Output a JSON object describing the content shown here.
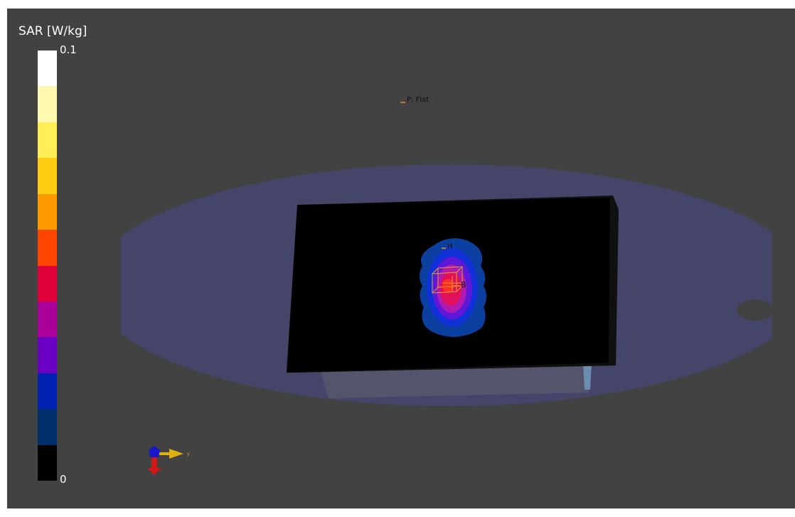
{
  "legend": {
    "title": "SAR [W/kg]",
    "max_label": "0.1",
    "min_label": "0",
    "colors": [
      "#ffffff",
      "#fffab0",
      "#ffee55",
      "#ffcc11",
      "#ff9900",
      "#ff4400",
      "#e0003a",
      "#aa0099",
      "#6a00c4",
      "#0022b0",
      "#00306c",
      "#000000"
    ]
  },
  "scene": {
    "background_color": "#424242",
    "phantom_color": "#45456a",
    "plate_color": "#000000",
    "probe_label": "P: Flat",
    "h_label": "H",
    "b_label": "B",
    "axis_label": "y",
    "sar_contour_colors": [
      "#0b40a0",
      "#1030d8",
      "#5f18d8",
      "#b01ab0",
      "#e0105a",
      "#ff2a2a"
    ]
  }
}
